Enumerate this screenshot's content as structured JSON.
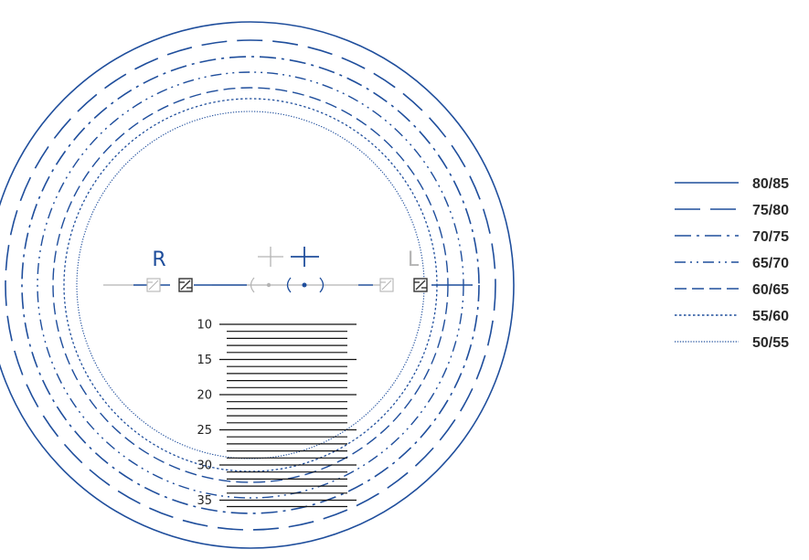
{
  "colors": {
    "primary": "#1f4e9c",
    "inactive": "#b4b4b4",
    "lines": "#111111",
    "text": "#2a2a2a"
  },
  "eyes": {
    "right": {
      "label": "R"
    },
    "left": {
      "label": "L"
    }
  },
  "rings": [
    {
      "range": "80/85",
      "style": "solid"
    },
    {
      "range": "75/80",
      "style": "long-dash"
    },
    {
      "range": "70/75",
      "style": "dash-dot"
    },
    {
      "range": "65/70",
      "style": "dash-dot-dot"
    },
    {
      "range": "60/65",
      "style": "dash"
    },
    {
      "range": "55/60",
      "style": "dotted"
    },
    {
      "range": "50/55",
      "style": "fine-dotted"
    }
  ],
  "scale": {
    "ticks": [
      "10",
      "15",
      "20",
      "25",
      "30",
      "35"
    ]
  },
  "icons": [
    "reticle-cross-icon",
    "distance-marker-icon",
    "bracketed-dot-icon"
  ]
}
